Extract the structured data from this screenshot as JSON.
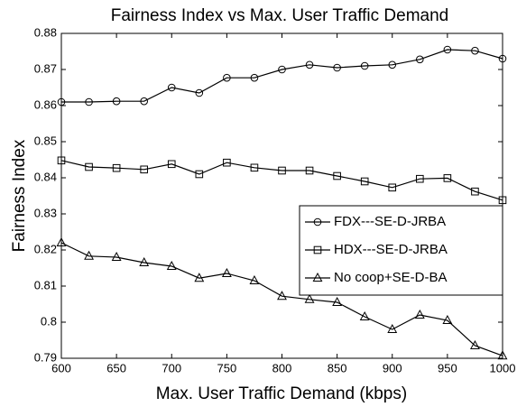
{
  "chart_data": {
    "type": "line",
    "title": "Fairness Index vs Max. User Traffic Demand",
    "x_label": "Max. User Traffic Demand (kbps)",
    "y_label": "Fairness Index",
    "x": [
      600,
      625,
      650,
      675,
      700,
      725,
      750,
      775,
      800,
      825,
      850,
      875,
      900,
      925,
      950,
      975,
      1000
    ],
    "series": [
      {
        "name": "FDX---SE-D-JRBA",
        "color": "#000000",
        "marker": "circle",
        "values": [
          0.861,
          0.861,
          0.8612,
          0.8612,
          0.865,
          0.8635,
          0.8677,
          0.8677,
          0.87,
          0.8713,
          0.8705,
          0.871,
          0.8713,
          0.8728,
          0.8755,
          0.8752,
          0.873
        ]
      },
      {
        "name": "HDX---SE-D-JRBA",
        "color": "#000000",
        "marker": "square",
        "values": [
          0.8448,
          0.843,
          0.8427,
          0.8423,
          0.8438,
          0.841,
          0.8442,
          0.8428,
          0.842,
          0.842,
          0.8405,
          0.839,
          0.8373,
          0.8397,
          0.8399,
          0.8362,
          0.8338
        ]
      },
      {
        "name": "No coop+SE-D-BA",
        "color": "#000000",
        "marker": "triangle",
        "values": [
          0.822,
          0.8183,
          0.818,
          0.8165,
          0.8155,
          0.8122,
          0.8135,
          0.8115,
          0.8072,
          0.8063,
          0.8055,
          0.8015,
          0.798,
          0.802,
          0.8005,
          0.7935,
          0.7907
        ]
      }
    ],
    "xlim": [
      600,
      1000
    ],
    "xticks": [
      600,
      650,
      700,
      750,
      800,
      850,
      900,
      950,
      1000
    ],
    "ylim": [
      0.79,
      0.88
    ],
    "yticks": [
      0.79,
      0.8,
      0.81,
      0.82,
      0.83,
      0.84,
      0.85,
      0.86,
      0.87,
      0.88
    ],
    "legend": "lower right",
    "grid": false
  }
}
